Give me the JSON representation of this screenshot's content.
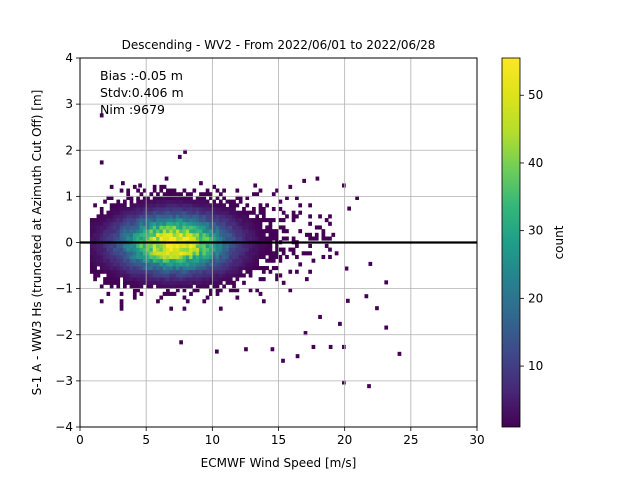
{
  "chart_data": {
    "type": "heatmap",
    "title": "Descending - WV2 - From 2022/06/01 to 2022/06/28",
    "xlabel": "ECMWF Wind Speed [m/s]",
    "ylabel": "S-1 A - WW3 Hs (truncated at Azimuth Cut Off) [m]",
    "xlim": [
      0,
      30
    ],
    "ylim": [
      -4,
      4
    ],
    "xticks": [
      "0",
      "5",
      "10",
      "15",
      "20",
      "25",
      "30"
    ],
    "yticks": [
      "4",
      "3",
      "2",
      "1",
      "0",
      "−1",
      "−2",
      "−3",
      "−4"
    ],
    "grid": true,
    "reference_line_y": 0,
    "annotations": [
      "Bias :-0.05 m",
      "Stdv:0.406 m",
      "Nim :9679"
    ],
    "colorbar": {
      "label": "count",
      "colormap": "viridis",
      "min": 1,
      "max": 55.5,
      "ticks": [
        "10",
        "20",
        "30",
        "40",
        "50"
      ]
    },
    "density_peak": {
      "x": 7.0,
      "y": -0.05,
      "count": 55
    },
    "outliers": [
      [
        1.5,
        2.72
      ],
      [
        1.5,
        1.7
      ],
      [
        7.8,
        1.93
      ],
      [
        7.4,
        1.82
      ],
      [
        24,
        -2.45
      ],
      [
        21.7,
        -3.15
      ],
      [
        19.8,
        -3.07
      ],
      [
        22.3,
        -1.46
      ],
      [
        23,
        -1.88
      ],
      [
        21.8,
        -0.5
      ],
      [
        23,
        -0.9
      ],
      [
        20,
        -0.6
      ],
      [
        17.5,
        -2.3
      ],
      [
        18.8,
        -2.3
      ],
      [
        19.8,
        -2.3
      ],
      [
        16.3,
        -2.5
      ],
      [
        15.2,
        -2.6
      ],
      [
        16.9,
        -2.0
      ],
      [
        12.4,
        -2.35
      ],
      [
        14.4,
        -2.35
      ],
      [
        10.2,
        -2.4
      ],
      [
        7.5,
        -2.2
      ],
      [
        20.8,
        0.93
      ],
      [
        20.2,
        0.7
      ],
      [
        21.5,
        -1.2
      ],
      [
        20.1,
        -1.3
      ],
      [
        18,
        -1.65
      ],
      [
        19.5,
        -1.8
      ],
      [
        3.1,
        1.25
      ],
      [
        4.4,
        1.2
      ],
      [
        6.4,
        1.35
      ],
      [
        9.0,
        1.25
      ],
      [
        13.1,
        1.2
      ],
      [
        17.8,
        1.35
      ],
      [
        19.8,
        1.2
      ],
      [
        16.8,
        1.3
      ]
    ]
  }
}
